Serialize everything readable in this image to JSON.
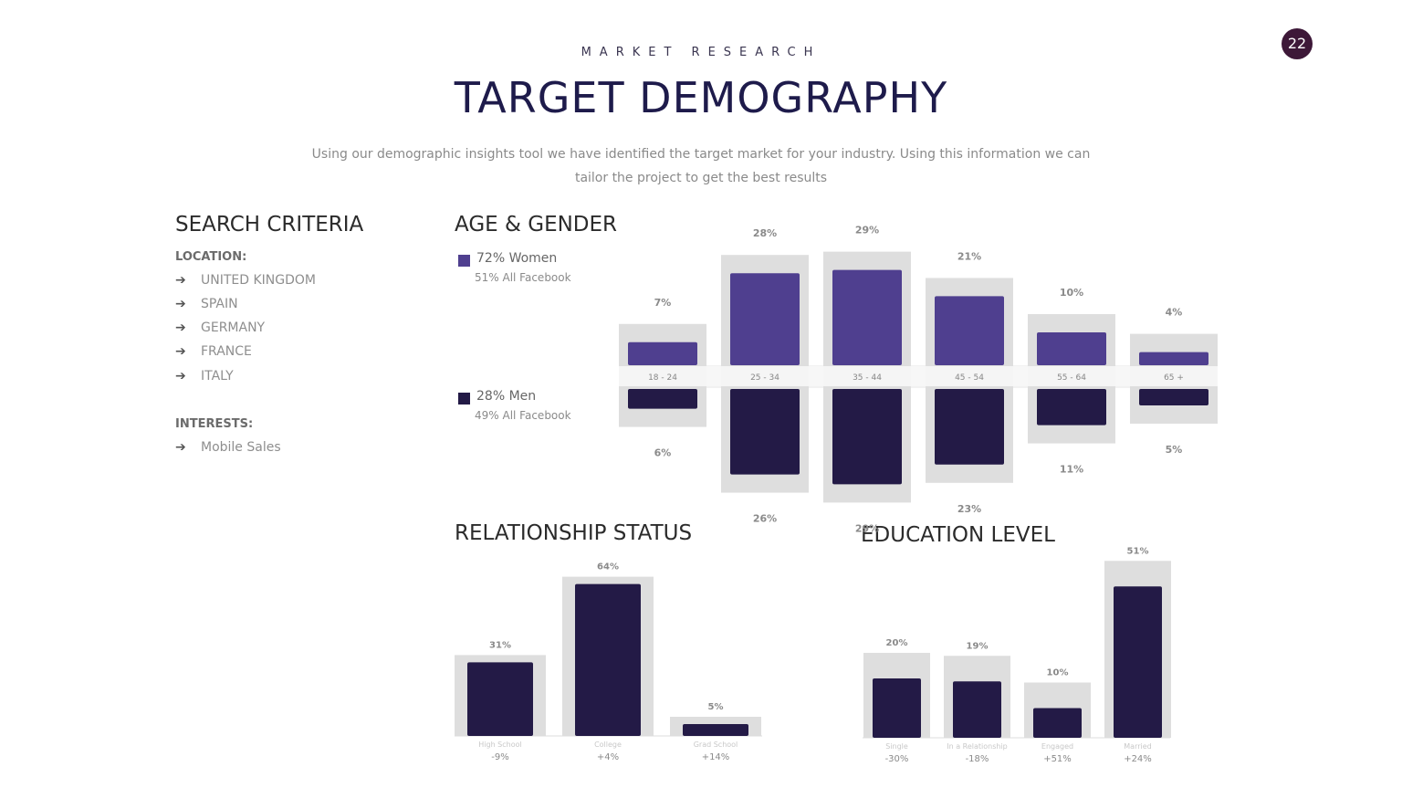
{
  "page_number": "22",
  "eyebrow": "MARKET RESEARCH",
  "title": "TARGET DEMOGRAPHY",
  "subtitle_line1": "Using our demographic insights tool we have identified the target market for your industry. Using this information we can",
  "subtitle_line2": "tailor the project to get the best results",
  "search_criteria": {
    "title": "SEARCH CRITERIA",
    "location_label": "LOCATION:",
    "locations": [
      "UNITED KINGDOM",
      "SPAIN",
      "GERMANY",
      "FRANCE",
      "ITALY"
    ],
    "interests_label": "INTERESTS:",
    "interests": [
      "Mobile Sales"
    ]
  },
  "colors": {
    "women": "#4f3f8f",
    "men": "#231a46",
    "background_bar": "#dedede",
    "accent_badge": "#3d1838"
  },
  "chart_data": [
    {
      "type": "bar",
      "title": "AGE & GENDER",
      "categories": [
        "18 - 24",
        "25 - 34",
        "35 - 44",
        "45 - 54",
        "55 - 64",
        "65 +"
      ],
      "series": [
        {
          "name": "72% Women",
          "note": "51% All Facebook",
          "values": [
            7,
            28,
            29,
            21,
            10,
            4
          ],
          "labels": [
            "7%",
            "28%",
            "29%",
            "21%",
            "10%",
            "4%"
          ]
        },
        {
          "name": "28% Men",
          "note": "49% All Facebook",
          "values": [
            6,
            26,
            29,
            23,
            11,
            5
          ],
          "labels": [
            "6%",
            "26%",
            "29%",
            "23%",
            "11%",
            "5%"
          ]
        }
      ],
      "ylim": [
        0,
        30
      ]
    },
    {
      "type": "bar",
      "title": "RELATIONSHIP STATUS",
      "categories": [
        "High School",
        "College",
        "Grad School"
      ],
      "values": [
        31,
        64,
        5
      ],
      "labels": [
        "31%",
        "64%",
        "5%"
      ],
      "deltas": [
        "-9%",
        "+4%",
        "+14%"
      ],
      "ylim": [
        0,
        70
      ]
    },
    {
      "type": "bar",
      "title": "EDUCATION LEVEL",
      "categories": [
        "Single",
        "In a Relationship",
        "Engaged",
        "Married"
      ],
      "values": [
        20,
        19,
        10,
        51
      ],
      "labels": [
        "20%",
        "19%",
        "10%",
        "51%"
      ],
      "deltas": [
        "-30%",
        "-18%",
        "+51%",
        "+24%"
      ],
      "ylim": [
        0,
        55
      ]
    }
  ]
}
